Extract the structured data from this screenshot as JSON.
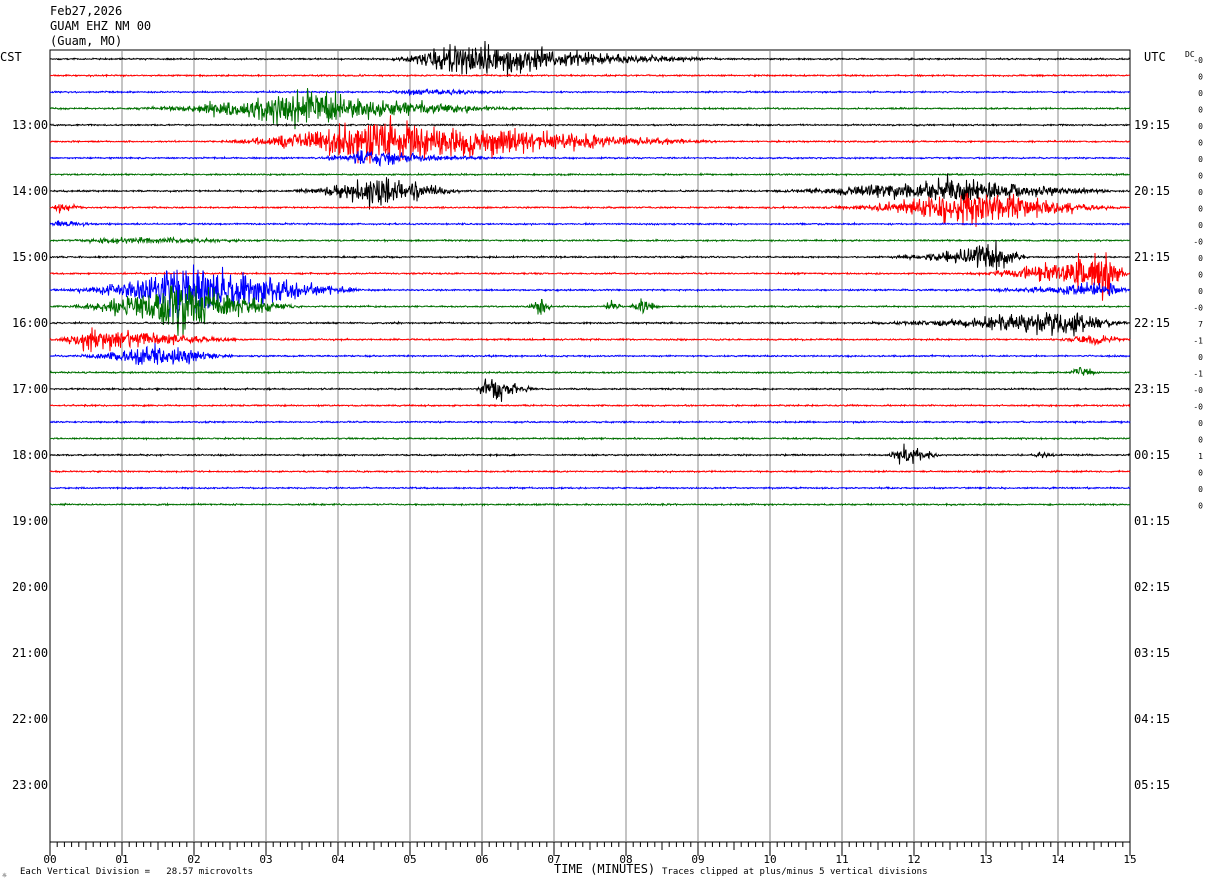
{
  "header": {
    "date": "Feb27,2026",
    "station": "GUAM EHZ NM 00",
    "location": "(Guam, MO)"
  },
  "labels": {
    "left_timezone": "CST",
    "right_timezone": "UTC",
    "dc": "DC"
  },
  "footer": {
    "division_note": "Each Vertical Division =   28.57 microvolts",
    "clip_note": "Traces clipped at plus/minus 5 vertical divisions",
    "logo_mark": "☼"
  },
  "chart_data": {
    "type": "line",
    "title": "",
    "xlabel": "TIME (MINUTES)",
    "xlim": [
      0,
      15
    ],
    "x_ticks": [
      "00",
      "01",
      "02",
      "03",
      "04",
      "05",
      "06",
      "07",
      "08",
      "09",
      "10",
      "11",
      "12",
      "13",
      "14",
      "15"
    ],
    "left_hour_labels": [
      "13:00",
      "14:00",
      "15:00",
      "16:00",
      "17:00",
      "18:00",
      "19:00",
      "20:00",
      "21:00",
      "22:00",
      "23:00"
    ],
    "right_hour_labels": [
      "19:15",
      "20:15",
      "21:15",
      "22:15",
      "23:15",
      "00:15",
      "01:15",
      "02:15",
      "03:15",
      "04:15",
      "05:15"
    ],
    "trace_colors": [
      "#000000",
      "#ff0000",
      "#0000ff",
      "#007000"
    ],
    "traces_per_hour": 4,
    "first_trace_start": "12:00",
    "minutes_per_trace": 15,
    "dc_offsets": [
      "-0",
      "0",
      "0",
      "0",
      "0",
      "0",
      "0",
      "0",
      "0",
      "0",
      "0",
      "-0",
      "0",
      "0",
      "0",
      "-0",
      "7",
      "-1",
      "0",
      "-1",
      "-0",
      "-0",
      "0",
      "0",
      "1",
      "0",
      "0",
      "0"
    ],
    "noise_level": 1.0,
    "events": [
      {
        "trace": 0,
        "start": 4.6,
        "peak": 5.6,
        "end": 9.5,
        "amp": 22
      },
      {
        "trace": 2,
        "start": 4.5,
        "peak": 5.1,
        "end": 6.5,
        "amp": 4
      },
      {
        "trace": 3,
        "start": 0.9,
        "peak": 3.4,
        "end": 6.7,
        "amp": 24
      },
      {
        "trace": 5,
        "start": 2.1,
        "peak": 4.4,
        "end": 9.5,
        "amp": 30
      },
      {
        "trace": 6,
        "start": 3.6,
        "peak": 4.3,
        "end": 6.3,
        "amp": 10
      },
      {
        "trace": 8,
        "start": 3.2,
        "peak": 4.6,
        "end": 5.8,
        "amp": 22
      },
      {
        "trace": 8,
        "start": 9.5,
        "peak": 12.5,
        "end": 15.0,
        "amp": 16
      },
      {
        "trace": 9,
        "start": 0.0,
        "peak": 0.1,
        "end": 0.6,
        "amp": 6
      },
      {
        "trace": 9,
        "start": 10.5,
        "peak": 12.8,
        "end": 15.0,
        "amp": 24
      },
      {
        "trace": 10,
        "start": 0.0,
        "peak": 0.1,
        "end": 0.7,
        "amp": 4
      },
      {
        "trace": 11,
        "start": 0.0,
        "peak": 1.0,
        "end": 3.2,
        "amp": 4
      },
      {
        "trace": 12,
        "start": 11.5,
        "peak": 13.1,
        "end": 13.6,
        "amp": 20
      },
      {
        "trace": 13,
        "start": 12.5,
        "peak": 14.7,
        "end": 15.0,
        "amp": 28
      },
      {
        "trace": 14,
        "start": 0.0,
        "peak": 1.9,
        "end": 4.5,
        "amp": 36
      },
      {
        "trace": 14,
        "start": 12.5,
        "peak": 14.8,
        "end": 15.0,
        "amp": 10
      },
      {
        "trace": 15,
        "start": 0.0,
        "peak": 1.8,
        "end": 3.6,
        "amp": 36
      },
      {
        "trace": 15,
        "start": 6.6,
        "peak": 6.8,
        "end": 7.0,
        "amp": 14
      },
      {
        "trace": 15,
        "start": 7.6,
        "peak": 7.8,
        "end": 8.0,
        "amp": 8
      },
      {
        "trace": 15,
        "start": 8.0,
        "peak": 8.2,
        "end": 8.5,
        "amp": 12
      },
      {
        "trace": 16,
        "start": 11.0,
        "peak": 14.2,
        "end": 15.0,
        "amp": 18
      },
      {
        "trace": 17,
        "start": 0.0,
        "peak": 0.5,
        "end": 2.8,
        "amp": 16
      },
      {
        "trace": 17,
        "start": 13.8,
        "peak": 14.5,
        "end": 15.0,
        "amp": 8
      },
      {
        "trace": 18,
        "start": 0.0,
        "peak": 1.5,
        "end": 2.6,
        "amp": 16
      },
      {
        "trace": 19,
        "start": 14.1,
        "peak": 14.3,
        "end": 14.6,
        "amp": 9
      },
      {
        "trace": 20,
        "start": 5.9,
        "peak": 6.05,
        "end": 6.8,
        "amp": 20
      },
      {
        "trace": 24,
        "start": 11.6,
        "peak": 11.85,
        "end": 12.4,
        "amp": 17
      },
      {
        "trace": 24,
        "start": 13.6,
        "peak": 13.75,
        "end": 14.0,
        "amp": 4
      }
    ]
  }
}
